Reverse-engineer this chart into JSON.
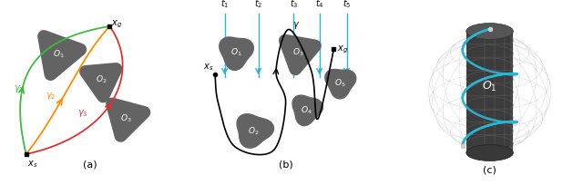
{
  "bg_color": "#ffffff",
  "panel_a_label": "(a)",
  "panel_b_label": "(b)",
  "panel_c_label": "(c)",
  "obstacle_color": "#636363",
  "cyan_color": "#29b6d4",
  "green_color": "#3dbb3d",
  "orange_color": "#ff8c00",
  "red_color": "#e03030",
  "black_color": "#111111"
}
